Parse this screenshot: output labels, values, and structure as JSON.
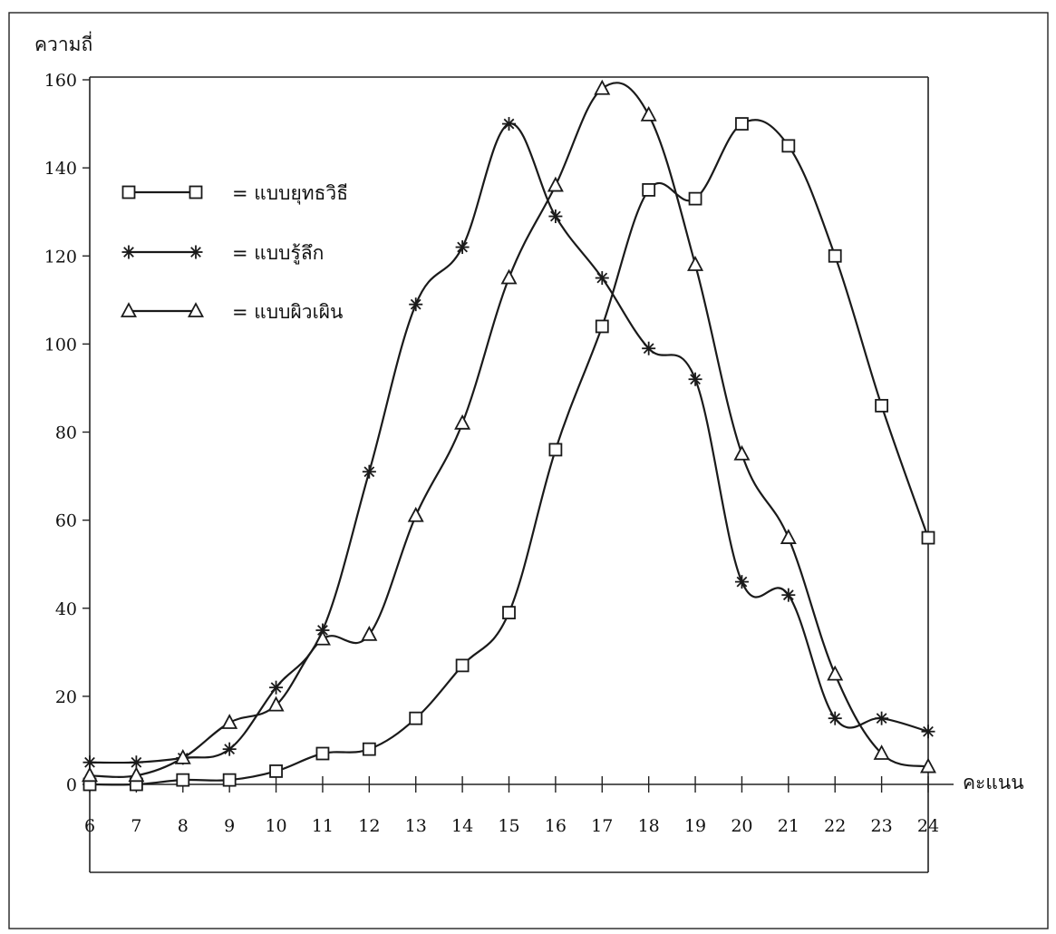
{
  "chart_data": {
    "type": "line",
    "ylabel": "ความถี่",
    "xlabel": "คะแนน",
    "ylim": [
      0,
      160
    ],
    "xlim": [
      6,
      24
    ],
    "y_ticks": [
      0,
      20,
      40,
      60,
      80,
      100,
      120,
      140,
      160
    ],
    "x_ticks": [
      6,
      7,
      8,
      9,
      10,
      11,
      12,
      13,
      14,
      15,
      16,
      17,
      18,
      19,
      20,
      21,
      22,
      23,
      24
    ],
    "grid": false,
    "legend_position": "top-left",
    "series": [
      {
        "name": "แบบยุทธวิธี",
        "marker": "square",
        "points": [
          [
            6,
            0
          ],
          [
            7,
            0
          ],
          [
            8,
            1
          ],
          [
            9,
            1
          ],
          [
            10,
            3
          ],
          [
            11,
            7
          ],
          [
            12,
            8
          ],
          [
            13,
            15
          ],
          [
            14,
            27
          ],
          [
            15,
            39
          ],
          [
            16,
            76
          ],
          [
            17,
            104
          ],
          [
            18,
            135
          ],
          [
            19,
            133
          ],
          [
            20,
            150
          ],
          [
            21,
            145
          ],
          [
            22,
            120
          ],
          [
            23,
            86
          ],
          [
            24,
            56
          ]
        ]
      },
      {
        "name": "แบบรู้ลึก",
        "marker": "asterisk",
        "points": [
          [
            6,
            5
          ],
          [
            7,
            5
          ],
          [
            8,
            6
          ],
          [
            9,
            8
          ],
          [
            10,
            22
          ],
          [
            11,
            35
          ],
          [
            12,
            71
          ],
          [
            13,
            109
          ],
          [
            14,
            122
          ],
          [
            15,
            150
          ],
          [
            16,
            129
          ],
          [
            17,
            115
          ],
          [
            18,
            99
          ],
          [
            19,
            92
          ],
          [
            20,
            46
          ],
          [
            21,
            43
          ],
          [
            22,
            15
          ],
          [
            23,
            15
          ],
          [
            24,
            12
          ]
        ]
      },
      {
        "name": "แบบผิวเผิน",
        "marker": "triangle",
        "points": [
          [
            6,
            2
          ],
          [
            7,
            2
          ],
          [
            8,
            6
          ],
          [
            9,
            14
          ],
          [
            10,
            18
          ],
          [
            11,
            33
          ],
          [
            12,
            34
          ],
          [
            13,
            61
          ],
          [
            14,
            82
          ],
          [
            15,
            115
          ],
          [
            16,
            136
          ],
          [
            17,
            158
          ],
          [
            18,
            152
          ],
          [
            19,
            118
          ],
          [
            20,
            75
          ],
          [
            21,
            56
          ],
          [
            22,
            25
          ],
          [
            23,
            7
          ],
          [
            24,
            4
          ]
        ]
      }
    ]
  },
  "legend": {
    "items": [
      {
        "label": "= แบบยุทธวิธี",
        "marker": "square"
      },
      {
        "label": "= แบบรู้ลึก",
        "marker": "asterisk"
      },
      {
        "label": "= แบบผิวเผิน",
        "marker": "triangle"
      }
    ]
  }
}
